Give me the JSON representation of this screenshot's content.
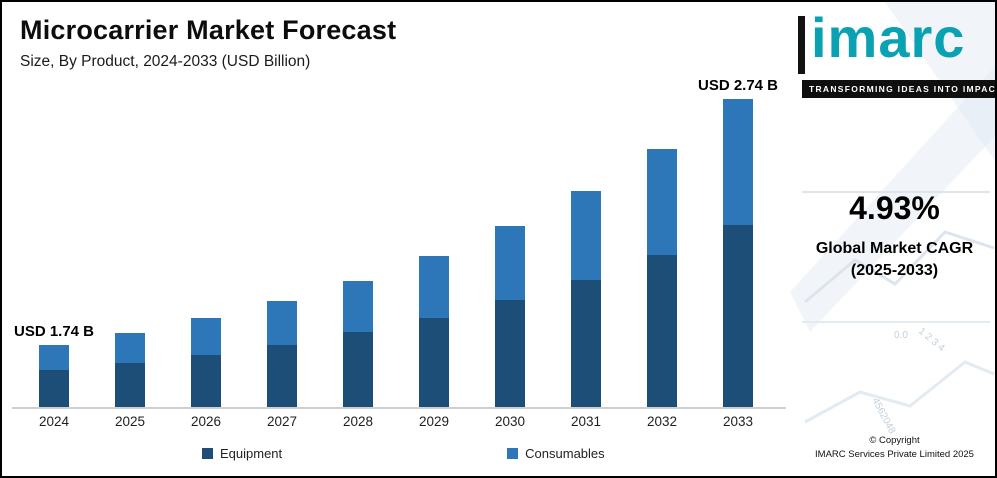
{
  "header": {
    "title": "Microcarrier Market Forecast",
    "subtitle": "Size, By Product, 2024-2033 (USD Billion)"
  },
  "chart_data": {
    "type": "bar",
    "stacked": true,
    "title": "Microcarrier Market Forecast",
    "subtitle": "Size, By Product, 2024-2033 (USD Billion)",
    "unit": "USD Billion",
    "categories": [
      "2024",
      "2025",
      "2026",
      "2027",
      "2028",
      "2029",
      "2030",
      "2031",
      "2032",
      "2033"
    ],
    "series": [
      {
        "name": "Equipment",
        "color": "#1d4e77",
        "values": [
          1.03,
          1.1,
          1.16,
          1.21,
          1.27,
          1.33,
          1.4,
          1.47,
          1.54,
          1.62
        ]
      },
      {
        "name": "Consumables",
        "color": "#2d77b8",
        "values": [
          0.71,
          0.76,
          0.8,
          0.84,
          0.88,
          0.93,
          0.97,
          1.02,
          1.07,
          1.12
        ]
      }
    ],
    "totals": [
      1.74,
      1.86,
      1.96,
      2.05,
      2.15,
      2.26,
      2.37,
      2.49,
      2.61,
      2.74
    ],
    "annotations": [
      {
        "index": 0,
        "text": "USD 1.74 B"
      },
      {
        "index": 9,
        "text": "USD 2.74 B"
      }
    ],
    "value_axis_visible": false,
    "grid": false,
    "legend_position": "bottom"
  },
  "sidebar": {
    "logo_text": "imarc",
    "tagline": "TRANSFORMING IDEAS INTO IMPACT",
    "cagr_value": "4.93%",
    "cagr_label_line1": "Global Market CAGR",
    "cagr_label_line2": "(2025-2033)",
    "copyright_line1": "© Copyright",
    "copyright_line2": "IMARC Services Private Limited 2025",
    "watermarks": [
      "0.0",
      "1 2 3 4",
      "4562048"
    ]
  },
  "colors": {
    "equipment": "#1d4e77",
    "consumables": "#2d77b8",
    "brand_teal": "#0aa2b2",
    "tagline_bg": "#0f0f0f",
    "axis_line": "#cfcfcf"
  }
}
